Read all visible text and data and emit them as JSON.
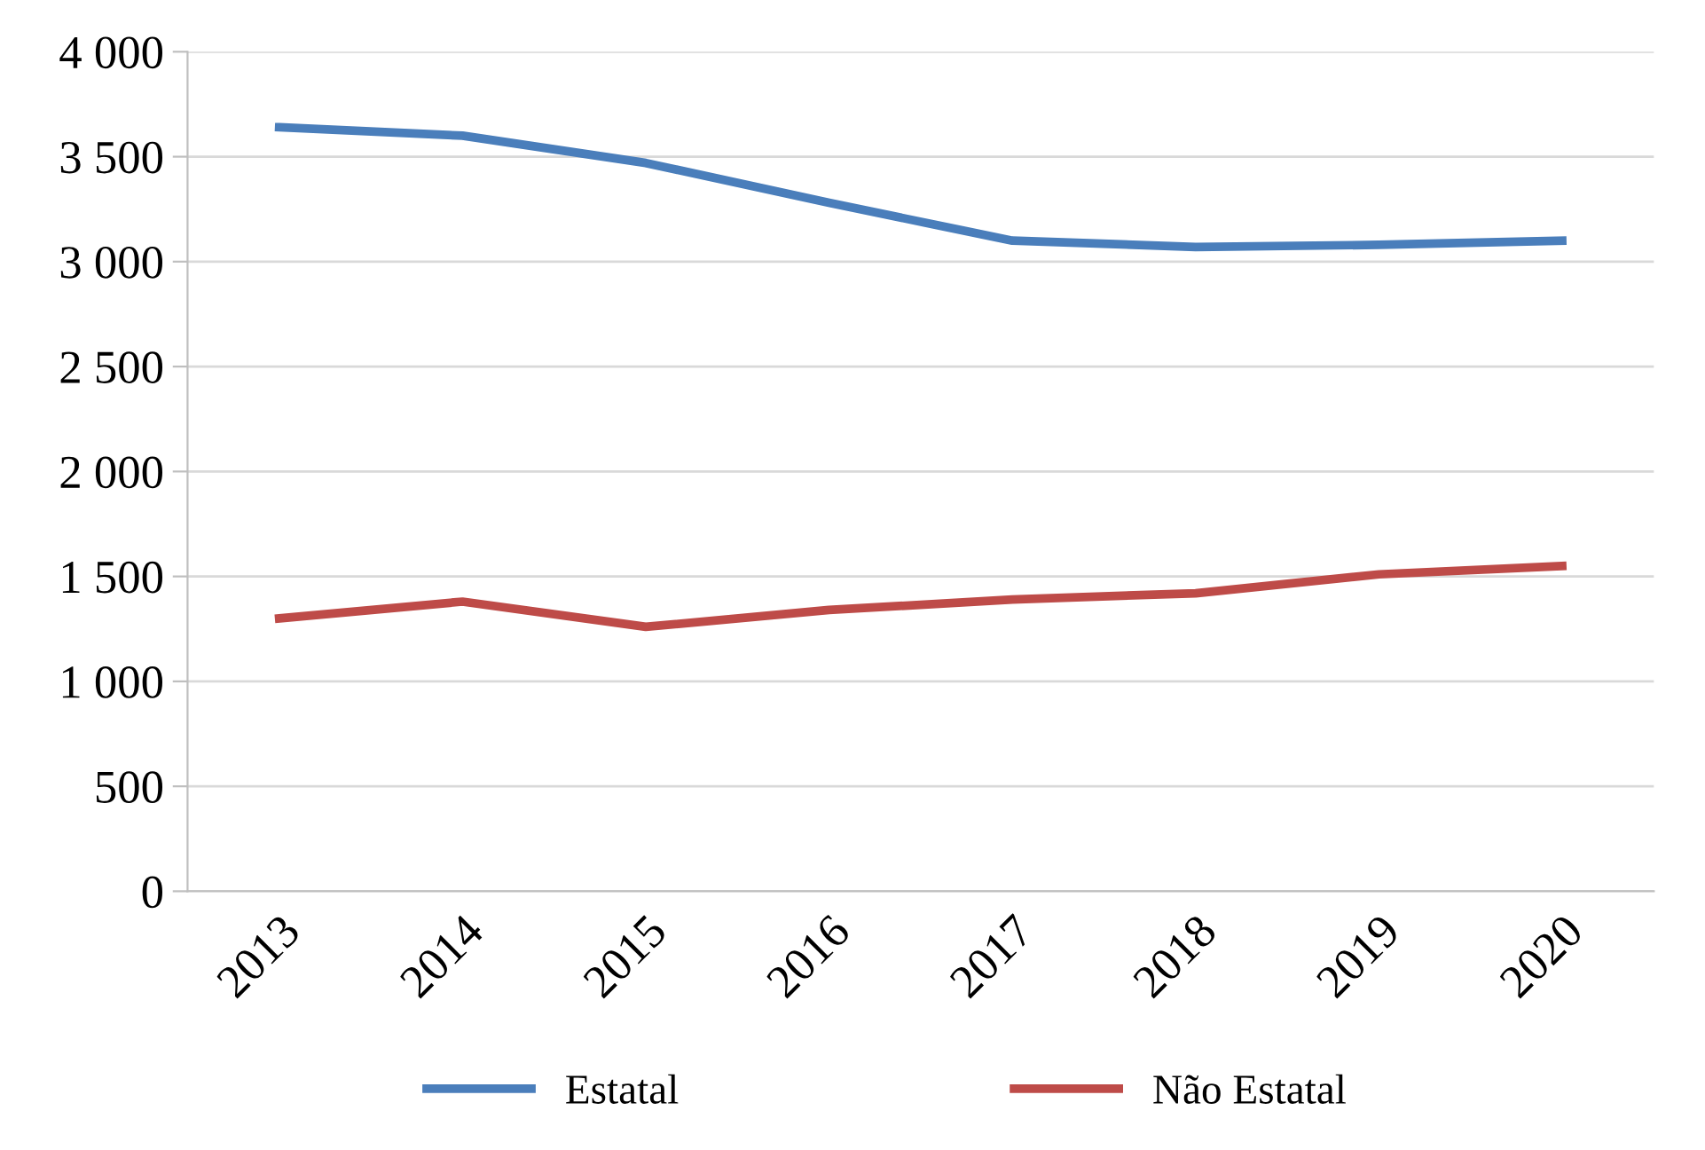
{
  "chart_data": {
    "type": "line",
    "categories": [
      "2013",
      "2014",
      "2015",
      "2016",
      "2017",
      "2018",
      "2019",
      "2020"
    ],
    "series": [
      {
        "name": "Estatal",
        "color": "#4a7ebb",
        "values": [
          3640,
          3600,
          3470,
          3280,
          3100,
          3070,
          3080,
          3100
        ]
      },
      {
        "name": "Não Estatal",
        "color": "#be4b48",
        "values": [
          1300,
          1380,
          1260,
          1340,
          1390,
          1420,
          1510,
          1550
        ]
      }
    ],
    "ylim": [
      0,
      4000
    ],
    "yticks": [
      0,
      500,
      {
        "value": 1000,
        "label": "1 000"
      },
      {
        "value": 1500,
        "label": "1 500"
      },
      {
        "value": 2000,
        "label": "2 000"
      },
      {
        "value": 2500,
        "label": "2 500"
      },
      {
        "value": 3000,
        "label": "3 000"
      },
      {
        "value": 3500,
        "label": "3 500"
      },
      {
        "value": 4000,
        "label": "4 000"
      }
    ],
    "grid": "y",
    "legend": "bottom",
    "marker": "none",
    "line_style": "solid"
  }
}
